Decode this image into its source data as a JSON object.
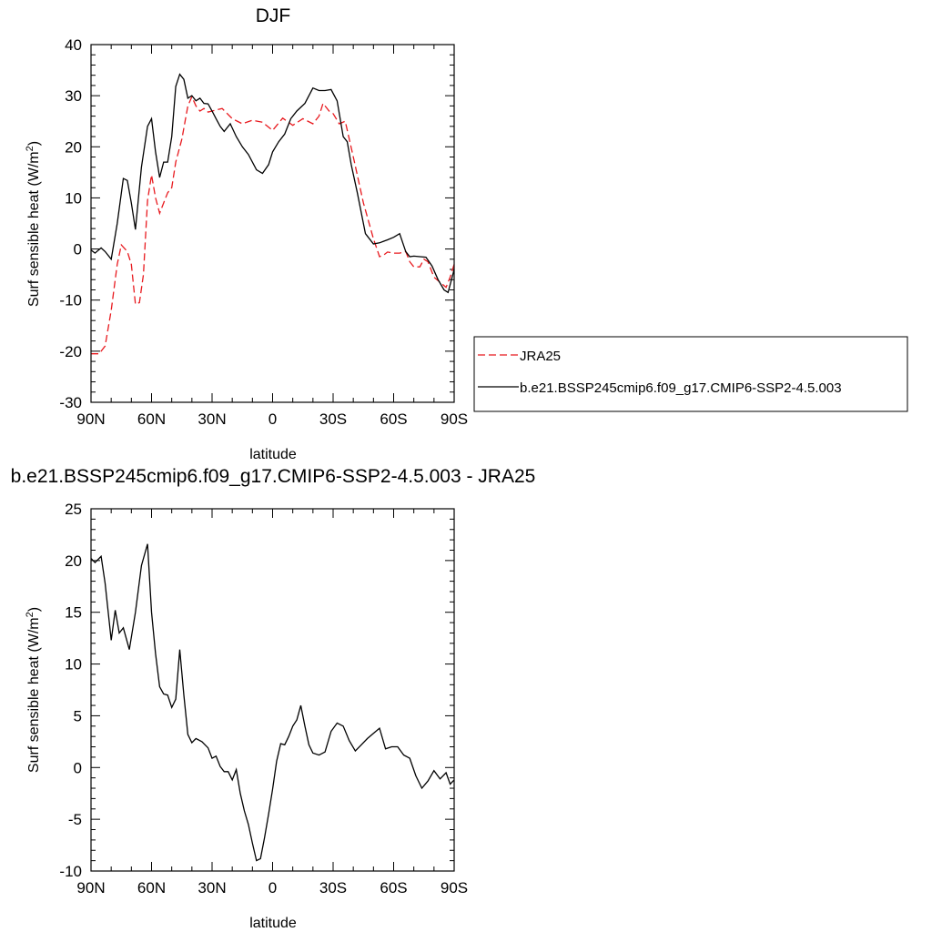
{
  "colors": {
    "jra": "#e8191e",
    "model": "#000000"
  },
  "chart_data": [
    {
      "type": "line",
      "title": "DJF",
      "xlabel": "latitude",
      "ylabel": "Surf sensible heat (W/m",
      "ylabel_sup": "2",
      "ylabel_end": ")",
      "xlim": [
        90,
        -90
      ],
      "ylim": [
        -30,
        40
      ],
      "x_ticks": [
        90,
        60,
        30,
        0,
        -30,
        -60,
        -90
      ],
      "x_tick_labels": [
        "90N",
        "60N",
        "30N",
        "0",
        "30S",
        "60S",
        "90S"
      ],
      "y_ticks": [
        -30,
        -20,
        -10,
        0,
        10,
        20,
        30,
        40
      ],
      "y_tick_labels": [
        "-30",
        "-20",
        "-10",
        "0",
        "10",
        "20",
        "30",
        "40"
      ],
      "legend": {
        "placement": "right",
        "entries": [
          "JRA25",
          "b.e21.BSSP245cmip6.f09_g17.CMIP6-SSP2-4.5.003"
        ]
      },
      "series": [
        {
          "name": "JRA25",
          "style": "dashed",
          "x": [
            90,
            86,
            83,
            80,
            77,
            75,
            72,
            70,
            68,
            66,
            64,
            62,
            60,
            58,
            56,
            54,
            52,
            50,
            48,
            45,
            42,
            40,
            38,
            36,
            34,
            32,
            30,
            25,
            20,
            15,
            10,
            5,
            0,
            -5,
            -10,
            -15,
            -20,
            -23,
            -25,
            -28,
            -30,
            -33,
            -36,
            -40,
            -45,
            -50,
            -53,
            -55,
            -57,
            -60,
            -63,
            -66,
            -68,
            -70,
            -73,
            -75,
            -77,
            -80,
            -83,
            -86,
            -88,
            -90
          ],
          "y": [
            -20.5,
            -20.5,
            -19,
            -12,
            -3,
            0.8,
            -0.5,
            -3,
            -10.8,
            -10.5,
            -5,
            9.5,
            14.5,
            10,
            7,
            9,
            11,
            12,
            17,
            21.5,
            28,
            29.8,
            28,
            27,
            27.5,
            26.8,
            27,
            27.5,
            25.5,
            24.5,
            25.2,
            24.8,
            23.2,
            25.6,
            24.2,
            25.5,
            24.5,
            26,
            28.5,
            27,
            26.5,
            24.5,
            25,
            18,
            9,
            2,
            -1.5,
            -1.2,
            -0.6,
            -0.8,
            -0.8,
            -0.5,
            -2.5,
            -3.5,
            -3.5,
            -2,
            -2.5,
            -5.5,
            -6.5,
            -7.5,
            -5.5,
            -3
          ]
        },
        {
          "name": "b.e21.BSSP245cmip6.f09_g17.CMIP6-SSP2-4.5.003",
          "style": "solid",
          "x": [
            90,
            88,
            85,
            83,
            80,
            77,
            74,
            72,
            70,
            68,
            65,
            62,
            60,
            58,
            56,
            54,
            52,
            50,
            48,
            46,
            44,
            42,
            40,
            38,
            36,
            34,
            32,
            30,
            28,
            26,
            24,
            21,
            18,
            15,
            12,
            8,
            5,
            2,
            0,
            -3,
            -6,
            -9,
            -12,
            -16,
            -20,
            -23,
            -26,
            -29,
            -32,
            -35,
            -37,
            -39,
            -42,
            -46,
            -50,
            -53,
            -55,
            -57,
            -60,
            -63,
            -66,
            -68,
            -70,
            -73,
            -76,
            -79,
            -82,
            -85,
            -87,
            -89,
            -90
          ],
          "y": [
            -0.2,
            -0.8,
            0.2,
            -0.5,
            -2,
            5,
            13.8,
            13.4,
            9,
            3.8,
            16,
            24,
            25.5,
            19,
            14,
            17,
            17,
            22,
            31.8,
            34.2,
            33.2,
            29.5,
            30,
            29,
            29.5,
            28.5,
            28.4,
            27,
            25.5,
            24,
            23,
            24.5,
            22,
            20,
            18.5,
            15.5,
            14.8,
            16.5,
            19,
            21,
            22.5,
            25.5,
            27,
            28.5,
            31.5,
            31,
            31,
            31.2,
            29,
            22,
            21,
            16.5,
            11,
            3,
            1,
            1.2,
            1.5,
            1.8,
            2.3,
            3,
            -0.5,
            -1.5,
            -1.4,
            -1.5,
            -1.6,
            -3.3,
            -6,
            -8,
            -8.5,
            -5.5,
            -4
          ]
        }
      ]
    },
    {
      "type": "line",
      "title": "b.e21.BSSP245cmip6.f09_g17.CMIP6-SSP2-4.5.003 - JRA25",
      "xlabel": "latitude",
      "ylabel": "Surf sensible heat (W/m",
      "ylabel_sup": "2",
      "ylabel_end": ")",
      "xlim": [
        90,
        -90
      ],
      "ylim": [
        -10,
        25
      ],
      "x_ticks": [
        90,
        60,
        30,
        0,
        -30,
        -60,
        -90
      ],
      "x_tick_labels": [
        "90N",
        "60N",
        "30N",
        "0",
        "30S",
        "60S",
        "90S"
      ],
      "y_ticks": [
        -10,
        -5,
        0,
        5,
        10,
        15,
        20,
        25
      ],
      "y_tick_labels": [
        "-10",
        "-5",
        "0",
        "5",
        "10",
        "15",
        "20",
        "25"
      ],
      "series": [
        {
          "x": [
            90,
            88,
            85,
            83,
            80,
            78,
            76,
            74,
            71,
            68,
            65,
            62,
            60,
            58,
            56,
            54,
            52,
            50,
            48,
            46,
            44,
            42,
            40,
            38,
            35,
            32,
            30,
            28,
            26,
            24,
            22,
            20,
            18,
            16,
            14,
            12,
            10,
            8,
            6,
            4,
            2,
            0,
            -2,
            -4,
            -6,
            -8,
            -10,
            -12,
            -14,
            -16,
            -18,
            -20,
            -23,
            -26,
            -29,
            -32,
            -35,
            -38,
            -41,
            -44,
            -47,
            -50,
            -53,
            -56,
            -59,
            -62,
            -65,
            -68,
            -71,
            -74,
            -77,
            -80,
            -83,
            -86,
            -88,
            -90
          ],
          "y": [
            20.2,
            19.8,
            20.4,
            17.8,
            12.3,
            15.2,
            13,
            13.5,
            11.4,
            15,
            19.5,
            21.6,
            15,
            11,
            7.8,
            7.1,
            7,
            5.8,
            6.6,
            11.4,
            7,
            3.2,
            2.4,
            2.8,
            2.5,
            1.9,
            0.9,
            1.1,
            0.1,
            -0.4,
            -0.4,
            -1.2,
            -0.2,
            -2.5,
            -4.2,
            -5.5,
            -7.3,
            -9,
            -8.8,
            -6.8,
            -4.5,
            -2.1,
            0.6,
            2.3,
            2.2,
            3,
            4,
            4.6,
            6,
            4,
            2.2,
            1.4,
            1.2,
            1.5,
            3.5,
            4.3,
            4,
            2.6,
            1.6,
            2.2,
            2.8,
            3.3,
            3.8,
            1.8,
            2,
            2,
            1.2,
            0.9,
            -0.8,
            -2,
            -1.3,
            -0.3,
            -1.1,
            -0.5,
            -1.6,
            -1.2
          ]
        }
      ]
    }
  ]
}
